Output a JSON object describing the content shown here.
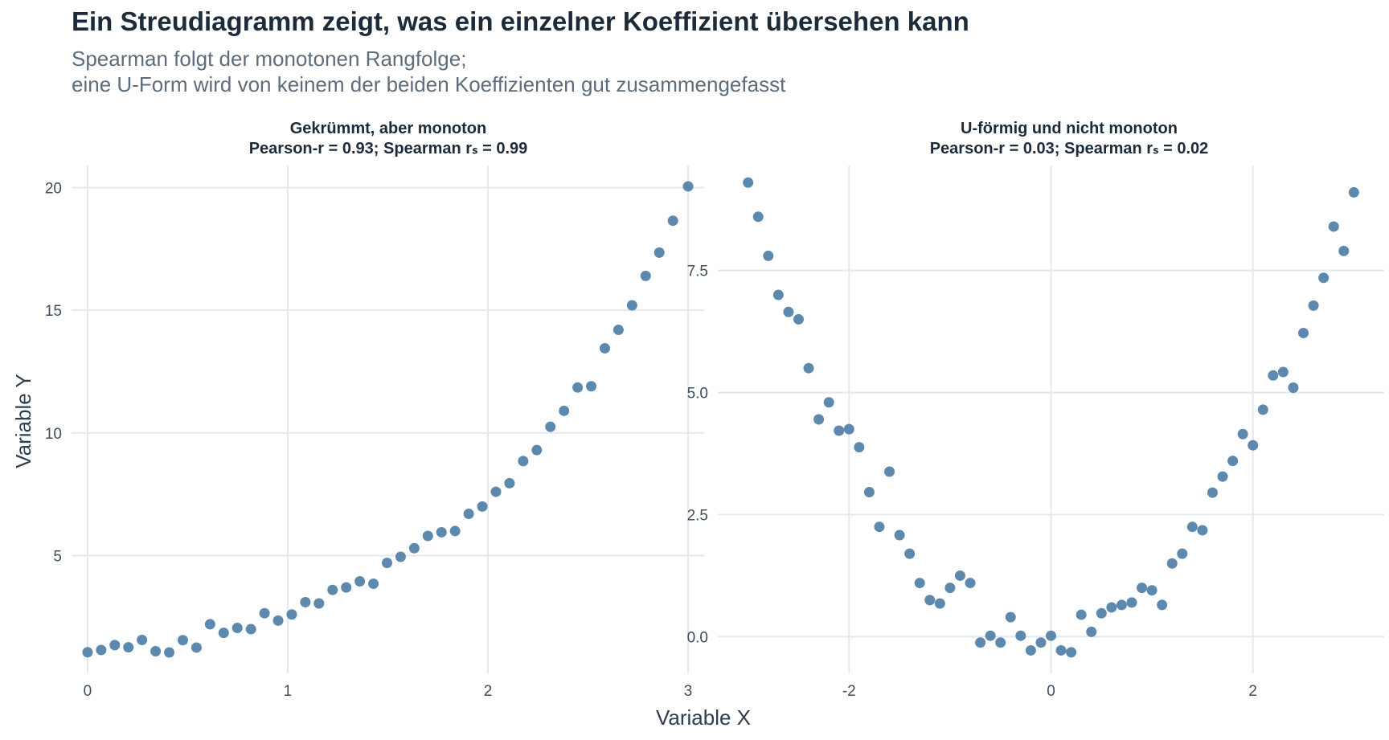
{
  "title": "Ein Streudiagramm zeigt, was ein einzelner Koeffizient übersehen kann",
  "subtitle_lines": [
    "Spearman folgt der monotonen Rangfolge;",
    "eine U-Form wird von keinem der beiden Koeffizienten gut zusammengefasst"
  ],
  "xlabel": "Variable X",
  "ylabel": "Variable Y",
  "point_color": "#4f7fa8",
  "chart_data": [
    {
      "type": "scatter",
      "title_line1": "Gekrümmt, aber monoton",
      "title_line2": "Pearson-r = 0.93; Spearman rₛ = 0.99",
      "xlim": [
        -0.08,
        3.08
      ],
      "ylim": [
        0.2,
        20.9
      ],
      "xticks": [
        0,
        1,
        2,
        3
      ],
      "yticks": [
        5,
        10,
        15,
        20
      ],
      "ytick_labels": [
        "5",
        "10",
        "15",
        "20"
      ],
      "grid": true,
      "x": [
        0,
        0.068,
        0.136,
        0.204,
        0.272,
        0.34,
        0.408,
        0.476,
        0.544,
        0.612,
        0.68,
        0.748,
        0.816,
        0.884,
        0.952,
        1.02,
        1.088,
        1.156,
        1.224,
        1.292,
        1.36,
        1.428,
        1.496,
        1.564,
        1.632,
        1.7,
        1.768,
        1.836,
        1.904,
        1.972,
        2.04,
        2.108,
        2.176,
        2.244,
        2.312,
        2.38,
        2.448,
        2.516,
        2.584,
        2.652,
        2.72,
        2.788,
        2.856,
        2.924,
        3.0
      ],
      "y": [
        1.06,
        1.15,
        1.35,
        1.26,
        1.56,
        1.1,
        1.05,
        1.55,
        1.25,
        2.2,
        1.85,
        2.05,
        2.0,
        2.65,
        2.35,
        2.6,
        3.1,
        3.05,
        3.6,
        3.7,
        3.95,
        3.85,
        4.7,
        4.95,
        5.3,
        5.8,
        5.95,
        6.0,
        6.7,
        7.0,
        7.6,
        7.95,
        8.85,
        9.3,
        10.25,
        10.9,
        11.85,
        11.9,
        13.45,
        14.2,
        15.2,
        16.4,
        17.35,
        18.65,
        20.05
      ]
    },
    {
      "type": "scatter",
      "title_line1": "U-förmig und nicht monoton",
      "title_line2": "Pearson-r = 0.03; Spearman rₛ = 0.02",
      "xlim": [
        -3.3,
        3.3
      ],
      "ylim": [
        -0.75,
        9.65
      ],
      "xticks": [
        -2,
        0,
        2
      ],
      "yticks": [
        0,
        2.5,
        5,
        7.5
      ],
      "ytick_labels": [
        "0.0",
        "2.5",
        "5.0",
        "7.5"
      ],
      "grid": true,
      "x": [
        -3.0,
        -2.9,
        -2.8,
        -2.7,
        -2.6,
        -2.5,
        -2.4,
        -2.3,
        -2.2,
        -2.1,
        -2.0,
        -1.9,
        -1.8,
        -1.7,
        -1.6,
        -1.5,
        -1.4,
        -1.3,
        -1.2,
        -1.1,
        -1.0,
        -0.9,
        -0.8,
        -0.7,
        -0.6,
        -0.5,
        -0.4,
        -0.3,
        -0.2,
        -0.1,
        0.0,
        0.1,
        0.2,
        0.3,
        0.4,
        0.5,
        0.6,
        0.7,
        0.8,
        0.9,
        1.0,
        1.1,
        1.2,
        1.3,
        1.4,
        1.5,
        1.6,
        1.7,
        1.8,
        1.9,
        2.0,
        2.1,
        2.2,
        2.3,
        2.4,
        2.5,
        2.6,
        2.7,
        2.8,
        2.9,
        3.0
      ],
      "y": [
        9.3,
        8.6,
        7.8,
        7.0,
        6.65,
        6.5,
        5.5,
        4.45,
        4.8,
        4.22,
        4.25,
        3.88,
        2.96,
        2.25,
        3.38,
        2.08,
        1.7,
        1.1,
        0.75,
        0.68,
        1.0,
        1.25,
        1.1,
        -0.12,
        0.02,
        -0.12,
        0.4,
        0.02,
        -0.28,
        -0.12,
        0.02,
        -0.28,
        -0.32,
        0.45,
        0.1,
        0.48,
        0.6,
        0.65,
        0.7,
        1.0,
        0.95,
        0.65,
        1.5,
        1.7,
        2.25,
        2.18,
        2.95,
        3.28,
        3.6,
        4.15,
        3.92,
        4.65,
        5.35,
        5.42,
        5.1,
        6.22,
        6.78,
        7.35,
        8.4,
        7.9,
        9.1
      ]
    }
  ]
}
